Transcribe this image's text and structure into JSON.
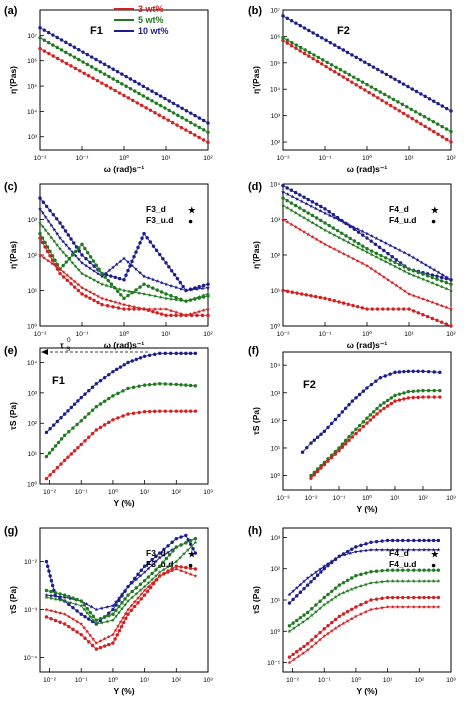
{
  "colors": {
    "red": "#d42020",
    "green": "#1f7a1f",
    "blue": "#1c1c8c"
  },
  "legend": [
    {
      "label": "3 wt%",
      "color": "#d42020"
    },
    {
      "label": "5 wt%",
      "color": "#1f7a1f"
    },
    {
      "label": "10 wt%",
      "color": "#1c1c8c"
    }
  ],
  "annotation_tau": "τ",
  "annotation_tau_sub": "S",
  "annotation_tau_sup": "0",
  "chart_data": [
    {
      "id": "a",
      "panel_label": "(a)",
      "title": "F1",
      "type": "line",
      "xlabel": "ω (rad)s⁻¹",
      "ylabel": "η'(Pas)",
      "xscale": "log",
      "yscale": "log",
      "xlim": [
        0.01,
        100
      ],
      "ylim": [
        300,
        100000000
      ],
      "xticks": [
        "10⁻²",
        "10⁻¹",
        "10⁰",
        "10¹",
        "10²"
      ],
      "yticks": [
        "10³",
        "10⁴",
        "10⁵",
        "10⁶",
        "10⁷"
      ],
      "series": [
        {
          "color": "#d42020",
          "marker": "dot",
          "x": [
            0.01,
            100
          ],
          "y": [
            3000000,
            600
          ]
        },
        {
          "color": "#1f7a1f",
          "marker": "dot",
          "x": [
            0.01,
            100
          ],
          "y": [
            8000000,
            1500
          ]
        },
        {
          "color": "#1c1c8c",
          "marker": "dot",
          "x": [
            0.01,
            100
          ],
          "y": [
            20000000,
            3500
          ]
        }
      ]
    },
    {
      "id": "b",
      "panel_label": "(b)",
      "title": "F2",
      "type": "line",
      "xlabel": "ω (rad)s⁻¹",
      "ylabel": "η'(Pas)",
      "xscale": "log",
      "yscale": "log",
      "xlim": [
        0.01,
        100
      ],
      "ylim": [
        50,
        10000000
      ],
      "xticks": [
        "10⁻²",
        "10⁻¹",
        "10⁰",
        "10¹",
        "10²"
      ],
      "yticks": [
        "10²",
        "10³",
        "10⁴",
        "10⁵",
        "10⁶",
        "10⁷"
      ],
      "series": [
        {
          "color": "#d42020",
          "marker": "dot",
          "x": [
            0.01,
            100
          ],
          "y": [
            700000,
            100
          ]
        },
        {
          "color": "#1f7a1f",
          "marker": "dot",
          "x": [
            0.01,
            100
          ],
          "y": [
            900000,
            250
          ]
        },
        {
          "color": "#1c1c8c",
          "marker": "dot",
          "x": [
            0.01,
            100
          ],
          "y": [
            6000000,
            1500
          ]
        }
      ]
    },
    {
      "id": "c",
      "panel_label": "(c)",
      "title": "",
      "type": "line",
      "xlabel": "ω (rad)s⁻¹",
      "ylabel": "η'(Pas)",
      "xscale": "log",
      "yscale": "log",
      "xlim": [
        0.01,
        100
      ],
      "ylim": [
        1,
        10000
      ],
      "xticks": [
        "10⁻²",
        "10⁻¹",
        "10⁰",
        "10¹",
        "10²"
      ],
      "yticks": [
        "10⁰",
        "10¹",
        "10²",
        "10³"
      ],
      "legend_marks": [
        {
          "label": "F3_d",
          "symbol": "★"
        },
        {
          "label": "F3_u.d",
          "symbol": "●"
        }
      ],
      "series": [
        {
          "color": "#1c1c8c",
          "marker": "star",
          "x": [
            0.01,
            0.03,
            0.1,
            0.3,
            1,
            3,
            10,
            30,
            100
          ],
          "y": [
            2000,
            300,
            60,
            25,
            80,
            25,
            15,
            10,
            12
          ]
        },
        {
          "color": "#1c1c8c",
          "marker": "dot",
          "x": [
            0.01,
            0.03,
            0.1,
            0.3,
            1,
            3,
            10,
            30,
            100
          ],
          "y": [
            4000,
            800,
            100,
            30,
            20,
            400,
            60,
            10,
            15
          ]
        },
        {
          "color": "#1f7a1f",
          "marker": "star",
          "x": [
            0.01,
            0.03,
            0.1,
            0.3,
            1,
            3,
            10,
            30,
            100
          ],
          "y": [
            800,
            150,
            30,
            15,
            10,
            8,
            6,
            5,
            8
          ]
        },
        {
          "color": "#1f7a1f",
          "marker": "dot",
          "x": [
            0.01,
            0.03,
            0.1,
            0.3,
            1,
            3,
            10,
            30,
            100
          ],
          "y": [
            400,
            40,
            200,
            30,
            6,
            15,
            8,
            5,
            7
          ]
        },
        {
          "color": "#d42020",
          "marker": "star",
          "x": [
            0.01,
            0.03,
            0.1,
            0.3,
            1,
            3,
            10,
            30,
            100
          ],
          "y": [
            100,
            40,
            12,
            6,
            4,
            3,
            3,
            2,
            3
          ]
        },
        {
          "color": "#d42020",
          "marker": "dot",
          "x": [
            0.01,
            0.03,
            0.1,
            0.3,
            1,
            3,
            10,
            30,
            100
          ],
          "y": [
            300,
            30,
            8,
            4,
            3,
            3,
            2,
            2,
            2
          ]
        }
      ]
    },
    {
      "id": "d",
      "panel_label": "(d)",
      "title": "",
      "type": "line",
      "xlabel": "ω (rad)s⁻¹",
      "ylabel": "η'(Pas)",
      "xscale": "log",
      "yscale": "log",
      "xlim": [
        0.01,
        100
      ],
      "ylim": [
        1,
        10000
      ],
      "xticks": [
        "10⁻²",
        "10⁻¹",
        "10⁰",
        "10¹",
        "10²"
      ],
      "yticks": [
        "10⁰",
        "10¹",
        "10²",
        "10³",
        "10⁴"
      ],
      "legend_marks": [
        {
          "label": "F4_d",
          "symbol": "★"
        },
        {
          "label": "F4_u.d",
          "symbol": "●"
        }
      ],
      "series": [
        {
          "color": "#1c1c8c",
          "marker": "star",
          "x": [
            0.01,
            0.1,
            1,
            10,
            100
          ],
          "y": [
            6000,
            1500,
            400,
            100,
            20
          ]
        },
        {
          "color": "#1c1c8c",
          "marker": "dot",
          "x": [
            0.01,
            0.1,
            1,
            10,
            100
          ],
          "y": [
            9000,
            2000,
            300,
            40,
            20
          ]
        },
        {
          "color": "#1f7a1f",
          "marker": "star",
          "x": [
            0.01,
            0.1,
            1,
            10,
            100
          ],
          "y": [
            2500,
            500,
            120,
            30,
            10
          ]
        },
        {
          "color": "#1f7a1f",
          "marker": "dot",
          "x": [
            0.01,
            0.1,
            1,
            10,
            100
          ],
          "y": [
            4000,
            800,
            150,
            40,
            15
          ]
        },
        {
          "color": "#d42020",
          "marker": "star",
          "x": [
            0.01,
            0.1,
            1,
            10,
            100
          ],
          "y": [
            1000,
            200,
            50,
            8,
            3
          ]
        },
        {
          "color": "#d42020",
          "marker": "dot",
          "x": [
            0.01,
            0.1,
            1,
            10,
            100
          ],
          "y": [
            10,
            6,
            3,
            3,
            1
          ]
        }
      ]
    },
    {
      "id": "e",
      "panel_label": "(e)",
      "title": "F1",
      "type": "line",
      "xlabel": "Y (%)",
      "ylabel": "τS (Pa)",
      "xscale": "log",
      "yscale": "log",
      "xlim": [
        0.005,
        1000
      ],
      "ylim": [
        1,
        30000
      ],
      "xticks": [
        "10⁻²",
        "10⁻¹",
        "10⁰",
        "10¹",
        "10²",
        "10³"
      ],
      "yticks": [
        "10⁰",
        "10¹",
        "10²",
        "10³",
        "10⁴"
      ],
      "series": [
        {
          "color": "#1c1c8c",
          "marker": "dot",
          "x": [
            0.008,
            0.03,
            0.1,
            0.3,
            1,
            3,
            10,
            30,
            100,
            400
          ],
          "y": [
            50,
            200,
            700,
            2000,
            5000,
            10000,
            16000,
            20000,
            20000,
            20000
          ]
        },
        {
          "color": "#1f7a1f",
          "marker": "dot",
          "x": [
            0.008,
            0.03,
            0.1,
            0.3,
            1,
            3,
            10,
            30,
            100,
            400
          ],
          "y": [
            8,
            40,
            120,
            350,
            800,
            1400,
            1800,
            2000,
            1900,
            1700
          ]
        },
        {
          "color": "#d42020",
          "marker": "dot",
          "x": [
            0.008,
            0.03,
            0.1,
            0.3,
            1,
            3,
            10,
            30,
            100,
            400
          ],
          "y": [
            1.5,
            6,
            20,
            60,
            130,
            200,
            240,
            250,
            250,
            250
          ]
        }
      ]
    },
    {
      "id": "f",
      "panel_label": "(f)",
      "title": "F2",
      "type": "line",
      "xlabel": "Y (%)",
      "ylabel": "τS (Pa)",
      "xscale": "log",
      "yscale": "log",
      "xlim": [
        0.001,
        1000
      ],
      "ylim": [
        0.3,
        30000
      ],
      "xticks": [
        "10⁻³",
        "10⁻²",
        "10⁻¹",
        "10⁰",
        "10¹",
        "10²",
        "10³"
      ],
      "yticks": [
        "10⁰",
        "10¹",
        "10²",
        "10³",
        "10⁴"
      ],
      "series": [
        {
          "color": "#1c1c8c",
          "marker": "dot",
          "x": [
            0.005,
            0.01,
            0.03,
            0.1,
            0.3,
            1,
            3,
            10,
            30,
            100,
            400
          ],
          "y": [
            7,
            15,
            40,
            150,
            500,
            1500,
            3500,
            5500,
            6000,
            6000,
            5500
          ]
        },
        {
          "color": "#1f7a1f",
          "marker": "dot",
          "x": [
            0.01,
            0.03,
            0.1,
            0.3,
            1,
            3,
            10,
            30,
            100,
            400
          ],
          "y": [
            1,
            3,
            10,
            35,
            120,
            350,
            800,
            1100,
            1200,
            1200
          ]
        },
        {
          "color": "#d42020",
          "marker": "dot",
          "x": [
            0.01,
            0.03,
            0.1,
            0.3,
            1,
            3,
            10,
            30,
            100,
            400
          ],
          "y": [
            0.8,
            2.5,
            8,
            25,
            80,
            220,
            500,
            650,
            700,
            700
          ]
        }
      ]
    },
    {
      "id": "g",
      "panel_label": "(g)",
      "title": "",
      "type": "line",
      "xlabel": "Y (%)",
      "ylabel": "τS (Pa)",
      "xscale": "log",
      "yscale": "log",
      "xlim": [
        0.005,
        1000
      ],
      "ylim": [
        5e-05,
        0.05
      ],
      "xticks": [
        "10⁻²",
        "10⁻¹",
        "10⁰",
        "10¹",
        "10²",
        "10³"
      ],
      "yticks": [
        "10⁻⁴",
        "10⁻³",
        "10⁻²"
      ],
      "legend_marks": [
        {
          "label": "F3_d",
          "symbol": "★"
        },
        {
          "label": "F3_u.d",
          "symbol": "●"
        }
      ],
      "series": [
        {
          "color": "#1c1c8c",
          "marker": "dot",
          "x": [
            0.008,
            0.015,
            0.03,
            0.1,
            0.3,
            1,
            3,
            10,
            30,
            100,
            200,
            400
          ],
          "y": [
            0.01,
            0.002,
            0.0015,
            0.0008,
            0.0005,
            0.001,
            0.003,
            0.008,
            0.015,
            0.03,
            0.035,
            0.015
          ]
        },
        {
          "color": "#1c1c8c",
          "marker": "star",
          "x": [
            0.008,
            0.03,
            0.1,
            0.3,
            1,
            3,
            10,
            30,
            100,
            400
          ],
          "y": [
            0.002,
            0.0018,
            0.0015,
            0.001,
            0.0012,
            0.003,
            0.006,
            0.012,
            0.02,
            0.03
          ]
        },
        {
          "color": "#1f7a1f",
          "marker": "dot",
          "x": [
            0.008,
            0.03,
            0.1,
            0.3,
            1,
            3,
            10,
            30,
            100,
            400
          ],
          "y": [
            0.0025,
            0.002,
            0.0015,
            0.0006,
            0.0008,
            0.002,
            0.004,
            0.008,
            0.02,
            0.03
          ]
        },
        {
          "color": "#1f7a1f",
          "marker": "star",
          "x": [
            0.008,
            0.03,
            0.1,
            0.3,
            1,
            3,
            10,
            30,
            100,
            400
          ],
          "y": [
            0.0018,
            0.0015,
            0.0012,
            0.0005,
            0.0006,
            0.0015,
            0.003,
            0.006,
            0.01,
            0.025
          ]
        },
        {
          "color": "#d42020",
          "marker": "dot",
          "x": [
            0.008,
            0.03,
            0.1,
            0.3,
            1,
            3,
            10,
            30,
            100,
            400
          ],
          "y": [
            0.0007,
            0.0005,
            0.0003,
            0.00015,
            0.0002,
            0.0008,
            0.002,
            0.005,
            0.008,
            0.007
          ]
        },
        {
          "color": "#d42020",
          "marker": "star",
          "x": [
            0.008,
            0.03,
            0.1,
            0.3,
            1,
            3,
            10,
            30,
            100,
            400
          ],
          "y": [
            0.001,
            0.0008,
            0.0005,
            0.0002,
            0.0003,
            0.001,
            0.0025,
            0.005,
            0.007,
            0.005
          ]
        }
      ]
    },
    {
      "id": "h",
      "panel_label": "(h)",
      "title": "",
      "type": "line",
      "xlabel": "Y (%)",
      "ylabel": "τS (Pa)",
      "xscale": "log",
      "yscale": "log",
      "xlim": [
        0.005,
        1000
      ],
      "ylim": [
        0.05,
        2000
      ],
      "xticks": [
        "10⁻²",
        "10⁻¹",
        "10⁰",
        "10¹",
        "10²",
        "10³"
      ],
      "yticks": [
        "10⁻¹",
        "10⁰",
        "10¹",
        "10²",
        "10³"
      ],
      "legend_marks": [
        {
          "label": "F4_d",
          "symbol": "★"
        },
        {
          "label": "F4_u.d",
          "symbol": "●"
        }
      ],
      "series": [
        {
          "color": "#1c1c8c",
          "marker": "dot",
          "x": [
            0.008,
            0.03,
            0.1,
            0.3,
            1,
            3,
            10,
            30,
            100,
            400
          ],
          "y": [
            8,
            30,
            100,
            250,
            500,
            700,
            800,
            800,
            800,
            800
          ]
        },
        {
          "color": "#1c1c8c",
          "marker": "star",
          "x": [
            0.008,
            0.03,
            0.1,
            0.3,
            1,
            3,
            10,
            30,
            100,
            400
          ],
          "y": [
            15,
            50,
            120,
            250,
            350,
            400,
            400,
            400,
            400,
            400
          ]
        },
        {
          "color": "#1f7a1f",
          "marker": "dot",
          "x": [
            0.008,
            0.03,
            0.1,
            0.3,
            1,
            3,
            10,
            30,
            100,
            400
          ],
          "y": [
            1.5,
            4,
            12,
            30,
            60,
            80,
            90,
            90,
            90,
            90
          ]
        },
        {
          "color": "#1f7a1f",
          "marker": "star",
          "x": [
            0.008,
            0.03,
            0.1,
            0.3,
            1,
            3,
            10,
            30,
            100,
            400
          ],
          "y": [
            1,
            2.5,
            7,
            15,
            25,
            35,
            40,
            40,
            40,
            40
          ]
        },
        {
          "color": "#d42020",
          "marker": "dot",
          "x": [
            0.008,
            0.03,
            0.1,
            0.3,
            1,
            3,
            10,
            30,
            100,
            400
          ],
          "y": [
            0.15,
            0.4,
            1.2,
            3,
            6,
            10,
            12,
            12,
            12,
            12
          ]
        },
        {
          "color": "#d42020",
          "marker": "star",
          "x": [
            0.008,
            0.03,
            0.1,
            0.3,
            1,
            3,
            10,
            30,
            100,
            400
          ],
          "y": [
            0.1,
            0.25,
            0.7,
            1.5,
            3,
            5,
            6,
            6,
            6,
            6
          ]
        }
      ]
    }
  ]
}
